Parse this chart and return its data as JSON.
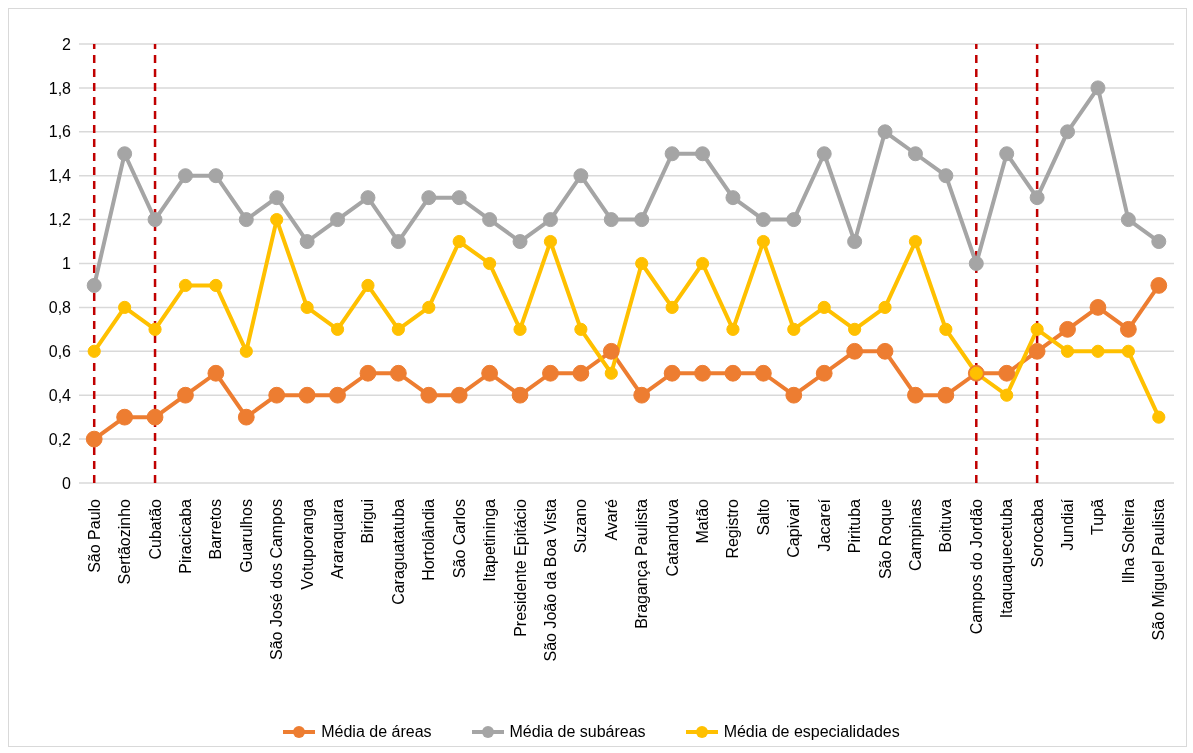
{
  "chart_data": {
    "type": "line",
    "categories": [
      "São Paulo",
      "Sertãozinho",
      "Cubatão",
      "Piracicaba",
      "Barretos",
      "Guarulhos",
      "São José dos Campos",
      "Votuporanga",
      "Araraquara",
      "Birigui",
      "Caraguatatuba",
      "Hortolândia",
      "São Carlos",
      "Itapetininga",
      "Presidente Epitácio",
      "São João da Boa Vista",
      "Suzano",
      "Avaré",
      "Bragança Paulista",
      "Catanduva",
      "Matão",
      "Registro",
      "Salto",
      "Capivari",
      "Jacareí",
      "Pirituba",
      "São Roque",
      "Campinas",
      "Boituva",
      "Campos do Jordão",
      "Itaquaquecetuba",
      "Sorocaba",
      "Jundiaí",
      "Tupã",
      "Ilha Solteira",
      "São Miguel Paulista"
    ],
    "series": [
      {
        "name": "Média de áreas",
        "color": "#ed7d31",
        "values": [
          0.2,
          0.3,
          0.3,
          0.4,
          0.5,
          0.3,
          0.4,
          0.4,
          0.4,
          0.5,
          0.5,
          0.4,
          0.4,
          0.5,
          0.4,
          0.5,
          0.5,
          0.6,
          0.4,
          0.5,
          0.5,
          0.5,
          0.5,
          0.4,
          0.5,
          0.6,
          0.6,
          0.4,
          0.4,
          0.5,
          0.5,
          0.6,
          0.7,
          0.8,
          0.7,
          0.9
        ]
      },
      {
        "name": "Média de subáreas",
        "color": "#a5a5a5",
        "values": [
          0.9,
          1.5,
          1.2,
          1.4,
          1.4,
          1.2,
          1.3,
          1.1,
          1.2,
          1.3,
          1.1,
          1.3,
          1.3,
          1.2,
          1.1,
          1.2,
          1.4,
          1.2,
          1.2,
          1.5,
          1.5,
          1.3,
          1.2,
          1.2,
          1.5,
          1.1,
          1.6,
          1.5,
          1.4,
          1.0,
          1.5,
          1.3,
          1.6,
          1.8,
          1.2,
          1.1
        ]
      },
      {
        "name": "Média de especialidades",
        "color": "#ffc000",
        "values": [
          0.6,
          0.8,
          0.7,
          0.9,
          0.9,
          0.6,
          1.2,
          0.8,
          0.7,
          0.9,
          0.7,
          0.8,
          1.1,
          1.0,
          0.7,
          1.1,
          0.7,
          0.5,
          1.0,
          0.8,
          1.0,
          0.7,
          1.1,
          0.7,
          0.8,
          0.7,
          0.8,
          1.1,
          0.7,
          0.5,
          0.4,
          0.7,
          0.6,
          0.6,
          0.6,
          0.3
        ]
      }
    ],
    "ylim": [
      0,
      2
    ],
    "yticks": [
      0,
      {
        "value": 0.2,
        "label": "0,2"
      },
      {
        "value": 0.4,
        "label": "0,4"
      },
      {
        "value": 0.6,
        "label": "0,6"
      },
      {
        "value": 0.8,
        "label": "0,8"
      },
      1,
      {
        "value": 1.2,
        "label": "1,2"
      },
      {
        "value": 1.4,
        "label": "1,4"
      },
      {
        "value": 1.6,
        "label": "1,6"
      },
      {
        "value": 1.8,
        "label": "1,8"
      },
      2
    ],
    "ref_lines": [
      {
        "axis": "x",
        "value": "São Paulo",
        "color": "#c00000",
        "line_style": "dashed"
      },
      {
        "axis": "x",
        "value": "Cubatão",
        "color": "#c00000",
        "line_style": "dashed"
      },
      {
        "axis": "x",
        "value": "Campos do Jordão",
        "color": "#c00000",
        "line_style": "dashed"
      },
      {
        "axis": "x",
        "value": "Sorocaba",
        "color": "#c00000",
        "line_style": "dashed"
      }
    ],
    "grid": "y",
    "legend": "bottom",
    "marker": "circle",
    "line_style": "solid"
  }
}
